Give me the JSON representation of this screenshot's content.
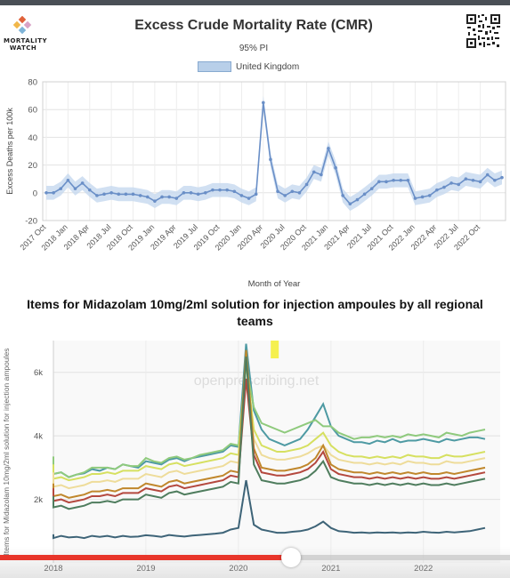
{
  "logo": {
    "text_line1": "MORTALITY",
    "text_line2": "WATCH"
  },
  "qr": {
    "icon": "qr-code-icon"
  },
  "progress": {
    "fraction": 0.57
  },
  "chart_data": [
    {
      "type": "line",
      "title": "Excess Crude Mortality Rate (CMR)",
      "subtitle": "95% PI",
      "xlabel": "Month of Year",
      "ylabel": "Excess Deaths per 100k",
      "ylim": [
        -20,
        80
      ],
      "yticks": [
        -20,
        0,
        20,
        40,
        60,
        80
      ],
      "grid": true,
      "legend_position": "top-center",
      "x_tick_labels": [
        "2017 Oct",
        "2018 Jan",
        "2018 Apr",
        "2018 Jul",
        "2018 Oct",
        "2019 Jan",
        "2019 Apr",
        "2019 Jul",
        "2019 Oct",
        "2020 Jan",
        "2020 Apr",
        "2020 Jul",
        "2020 Oct",
        "2021 Jan",
        "2021 Apr",
        "2021 Jul",
        "2021 Oct",
        "2022 Jan",
        "2022 Apr",
        "2022 Jul",
        "2022 Oct"
      ],
      "series": [
        {
          "name": "United Kingdom",
          "color": "#6a8fc7",
          "band_color": "#c5d8ef",
          "values": [
            0,
            0,
            3,
            9,
            3,
            7,
            2,
            -2,
            -1,
            0,
            -1,
            -1,
            -1,
            -2,
            -3,
            -6,
            -3,
            -3,
            -4,
            0,
            0,
            -1,
            0,
            2,
            2,
            2,
            1,
            -2,
            -4,
            -1,
            65,
            24,
            1,
            -2,
            1,
            0,
            6,
            15,
            13,
            32,
            18,
            -2,
            -8,
            -5,
            -1,
            3,
            8,
            8,
            9,
            9,
            9,
            -4,
            -3,
            -2,
            2,
            4,
            7,
            6,
            10,
            9,
            8,
            13,
            9,
            11
          ]
        }
      ]
    },
    {
      "type": "line",
      "title": "Items for Midazolam 10mg/2ml solution for injection ampoules by all regional teams",
      "ylabel": "Items for Midazolam 10mg/2ml solution for injection ampoules",
      "xlim": [
        2018,
        2022.83
      ],
      "ylim": [
        0,
        7000
      ],
      "yticks": [
        2000,
        4000,
        6000
      ],
      "ytick_labels": [
        "2k",
        "4k",
        "6k"
      ],
      "xticks": [
        2018,
        2019,
        2020,
        2021,
        2022
      ],
      "xtick_labels": [
        "2018",
        "2019",
        "2020",
        "2021",
        "2022"
      ],
      "watermark": "openprescribing.net",
      "highlight_month": 2020.33,
      "series": [
        {
          "color": "#4e9aa3",
          "values": [
            3000,
            3250,
            2900,
            2800,
            2850,
            2700,
            2780,
            2820,
            2950,
            2900,
            3000,
            2950,
            3100,
            3050,
            3000,
            3200,
            3150,
            3100,
            3250,
            3300,
            3200,
            3300,
            3350,
            3400,
            3450,
            3500,
            3700,
            3650,
            6900,
            4800,
            4200,
            3900,
            3800,
            3700,
            3800,
            3900,
            4200,
            4600,
            5000,
            4300,
            4000,
            3900,
            3800,
            3800,
            3750,
            3850,
            3800,
            3900,
            3800,
            3850,
            3850,
            3900,
            3850,
            3800,
            3900,
            3850,
            3900,
            3950,
            3950,
            3900
          ]
        },
        {
          "color": "#8fca7d",
          "values": [
            2900,
            3350,
            2850,
            2800,
            2850,
            2700,
            2780,
            2850,
            3000,
            3000,
            3000,
            2950,
            3100,
            3050,
            3050,
            3300,
            3200,
            3150,
            3300,
            3350,
            3250,
            3300,
            3400,
            3450,
            3500,
            3550,
            3750,
            3700,
            6200,
            4900,
            4400,
            4300,
            4200,
            4100,
            4200,
            4300,
            4400,
            4500,
            4300,
            4300,
            4100,
            4000,
            3900,
            3950,
            3950,
            4000,
            3950,
            4000,
            3950,
            4050,
            4000,
            4050,
            4000,
            3950,
            4100,
            4050,
            4000,
            4100,
            4150,
            4200
          ]
        },
        {
          "color": "#d6e060",
          "values": [
            2800,
            3100,
            2700,
            2650,
            2700,
            2600,
            2650,
            2700,
            2800,
            2800,
            2850,
            2800,
            2900,
            2900,
            2900,
            3050,
            3000,
            2950,
            3100,
            3150,
            3050,
            3100,
            3150,
            3200,
            3250,
            3300,
            3450,
            3400,
            6300,
            4200,
            3700,
            3600,
            3500,
            3500,
            3550,
            3600,
            3700,
            3900,
            4100,
            3700,
            3500,
            3400,
            3350,
            3350,
            3300,
            3350,
            3300,
            3350,
            3300,
            3400,
            3350,
            3350,
            3300,
            3300,
            3400,
            3350,
            3350,
            3400,
            3450,
            3500
          ]
        },
        {
          "color": "#eedc9a",
          "values": [
            2500,
            2850,
            2450,
            2400,
            2450,
            2350,
            2400,
            2450,
            2550,
            2550,
            2600,
            2550,
            2650,
            2650,
            2650,
            2800,
            2750,
            2700,
            2850,
            2900,
            2800,
            2850,
            2900,
            2950,
            3000,
            3050,
            3200,
            3150,
            5800,
            3900,
            3400,
            3300,
            3250,
            3250,
            3300,
            3350,
            3450,
            3600,
            3700,
            3400,
            3250,
            3200,
            3150,
            3150,
            3100,
            3150,
            3100,
            3150,
            3100,
            3200,
            3150,
            3150,
            3100,
            3100,
            3200,
            3150,
            3150,
            3200,
            3250,
            3300
          ]
        },
        {
          "color": "#c0872c",
          "values": [
            2200,
            2500,
            2150,
            2100,
            2150,
            2050,
            2100,
            2150,
            2250,
            2250,
            2300,
            2250,
            2350,
            2350,
            2350,
            2500,
            2450,
            2400,
            2550,
            2600,
            2500,
            2550,
            2600,
            2650,
            2700,
            2750,
            2900,
            2850,
            6700,
            3600,
            3000,
            2950,
            2900,
            2900,
            2950,
            3000,
            3100,
            3300,
            3700,
            3100,
            2950,
            2900,
            2850,
            2850,
            2800,
            2850,
            2800,
            2850,
            2800,
            2850,
            2800,
            2850,
            2800,
            2800,
            2850,
            2800,
            2850,
            2900,
            2950,
            3000
          ]
        },
        {
          "color": "#b4483e",
          "values": [
            2050,
            2350,
            2000,
            1950,
            2000,
            1900,
            1950,
            2000,
            2100,
            2100,
            2150,
            2100,
            2200,
            2200,
            2200,
            2350,
            2300,
            2250,
            2400,
            2450,
            2350,
            2400,
            2450,
            2500,
            2550,
            2600,
            2750,
            2700,
            5800,
            3400,
            2850,
            2800,
            2750,
            2750,
            2800,
            2850,
            2950,
            3150,
            3500,
            2950,
            2800,
            2750,
            2700,
            2700,
            2650,
            2700,
            2650,
            2700,
            2650,
            2700,
            2650,
            2700,
            2650,
            2650,
            2700,
            2650,
            2700,
            2750,
            2800,
            2850
          ]
        },
        {
          "color": "#4f7d5e",
          "values": [
            1850,
            2100,
            1800,
            1750,
            1800,
            1700,
            1750,
            1800,
            1900,
            1900,
            1950,
            1900,
            2000,
            2000,
            2000,
            2150,
            2100,
            2050,
            2200,
            2250,
            2150,
            2200,
            2250,
            2300,
            2350,
            2400,
            2550,
            2500,
            6500,
            3100,
            2600,
            2550,
            2500,
            2500,
            2550,
            2600,
            2700,
            2900,
            3200,
            2700,
            2600,
            2550,
            2500,
            2500,
            2450,
            2500,
            2450,
            2500,
            2450,
            2500,
            2450,
            2500,
            2450,
            2450,
            2500,
            2450,
            2500,
            2550,
            2600,
            2650
          ]
        },
        {
          "color": "#3e6478",
          "values": [
            900,
            850,
            820,
            780,
            850,
            800,
            820,
            780,
            850,
            820,
            850,
            800,
            850,
            820,
            830,
            870,
            850,
            820,
            880,
            850,
            830,
            860,
            880,
            900,
            920,
            950,
            1050,
            1100,
            2600,
            1200,
            1050,
            1000,
            950,
            950,
            980,
            1000,
            1050,
            1150,
            1300,
            1100,
            1000,
            980,
            950,
            960,
            940,
            960,
            950,
            960,
            940,
            960,
            950,
            980,
            960,
            950,
            980,
            960,
            980,
            1000,
            1050,
            1100
          ]
        }
      ]
    }
  ]
}
